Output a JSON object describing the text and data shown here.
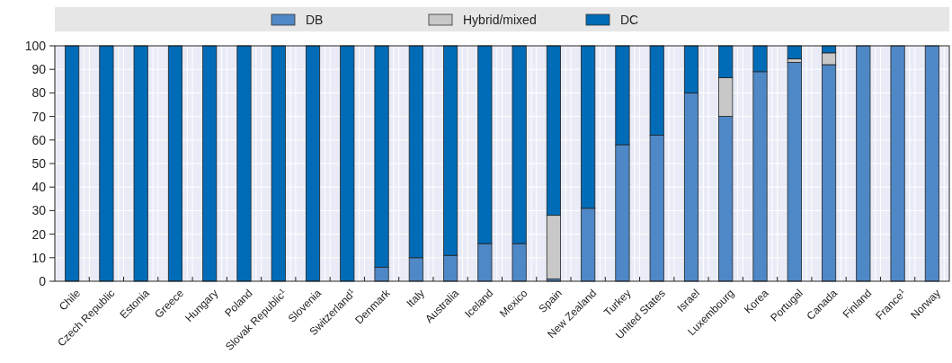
{
  "chart_data": {
    "type": "bar",
    "stacked": true,
    "categories": [
      "Chile",
      "Czech Republic",
      "Estonia",
      "Greece",
      "Hungary",
      "Poland",
      "Slovak Republic$^{1}$",
      "Slovenia",
      "Switzerland$^{1}$",
      "Denmark",
      "Italy",
      "Australia",
      "Iceland",
      "Mexico",
      "Spain",
      "New Zealand",
      "Turkey",
      "United States",
      "Israel",
      "Luxembourg",
      "Korea",
      "Portugal",
      "Canada",
      "Finland",
      "France$^{1}$",
      "Norway"
    ],
    "series": [
      {
        "name": "DB",
        "color": "#4f88c6",
        "values": [
          0,
          0,
          0,
          0,
          0,
          0,
          0,
          0,
          0,
          6,
          10,
          11,
          16,
          16,
          1,
          31,
          58,
          62,
          80,
          70,
          89,
          93,
          92,
          100,
          100,
          100
        ]
      },
      {
        "name": "Hybrid/mixed",
        "color": "#c8c8c8",
        "values": [
          0,
          0,
          0,
          0,
          0,
          0,
          0,
          0,
          0,
          0,
          0,
          0,
          0,
          0,
          27,
          0,
          0,
          0,
          0,
          16.5,
          0,
          1.5,
          5,
          0,
          0,
          0
        ]
      },
      {
        "name": "DC",
        "color": "#006bb6",
        "values": [
          100,
          100,
          100,
          100,
          100,
          100,
          100,
          100,
          100,
          94,
          90,
          89,
          84,
          84,
          72,
          69,
          42,
          38,
          20,
          13.5,
          11,
          5.5,
          3,
          0,
          0,
          0
        ]
      }
    ],
    "ylim": [
      0,
      100
    ],
    "yticks": [
      0,
      10,
      20,
      30,
      40,
      50,
      60,
      70,
      80,
      90,
      100
    ],
    "grid": true,
    "legend": "top"
  }
}
